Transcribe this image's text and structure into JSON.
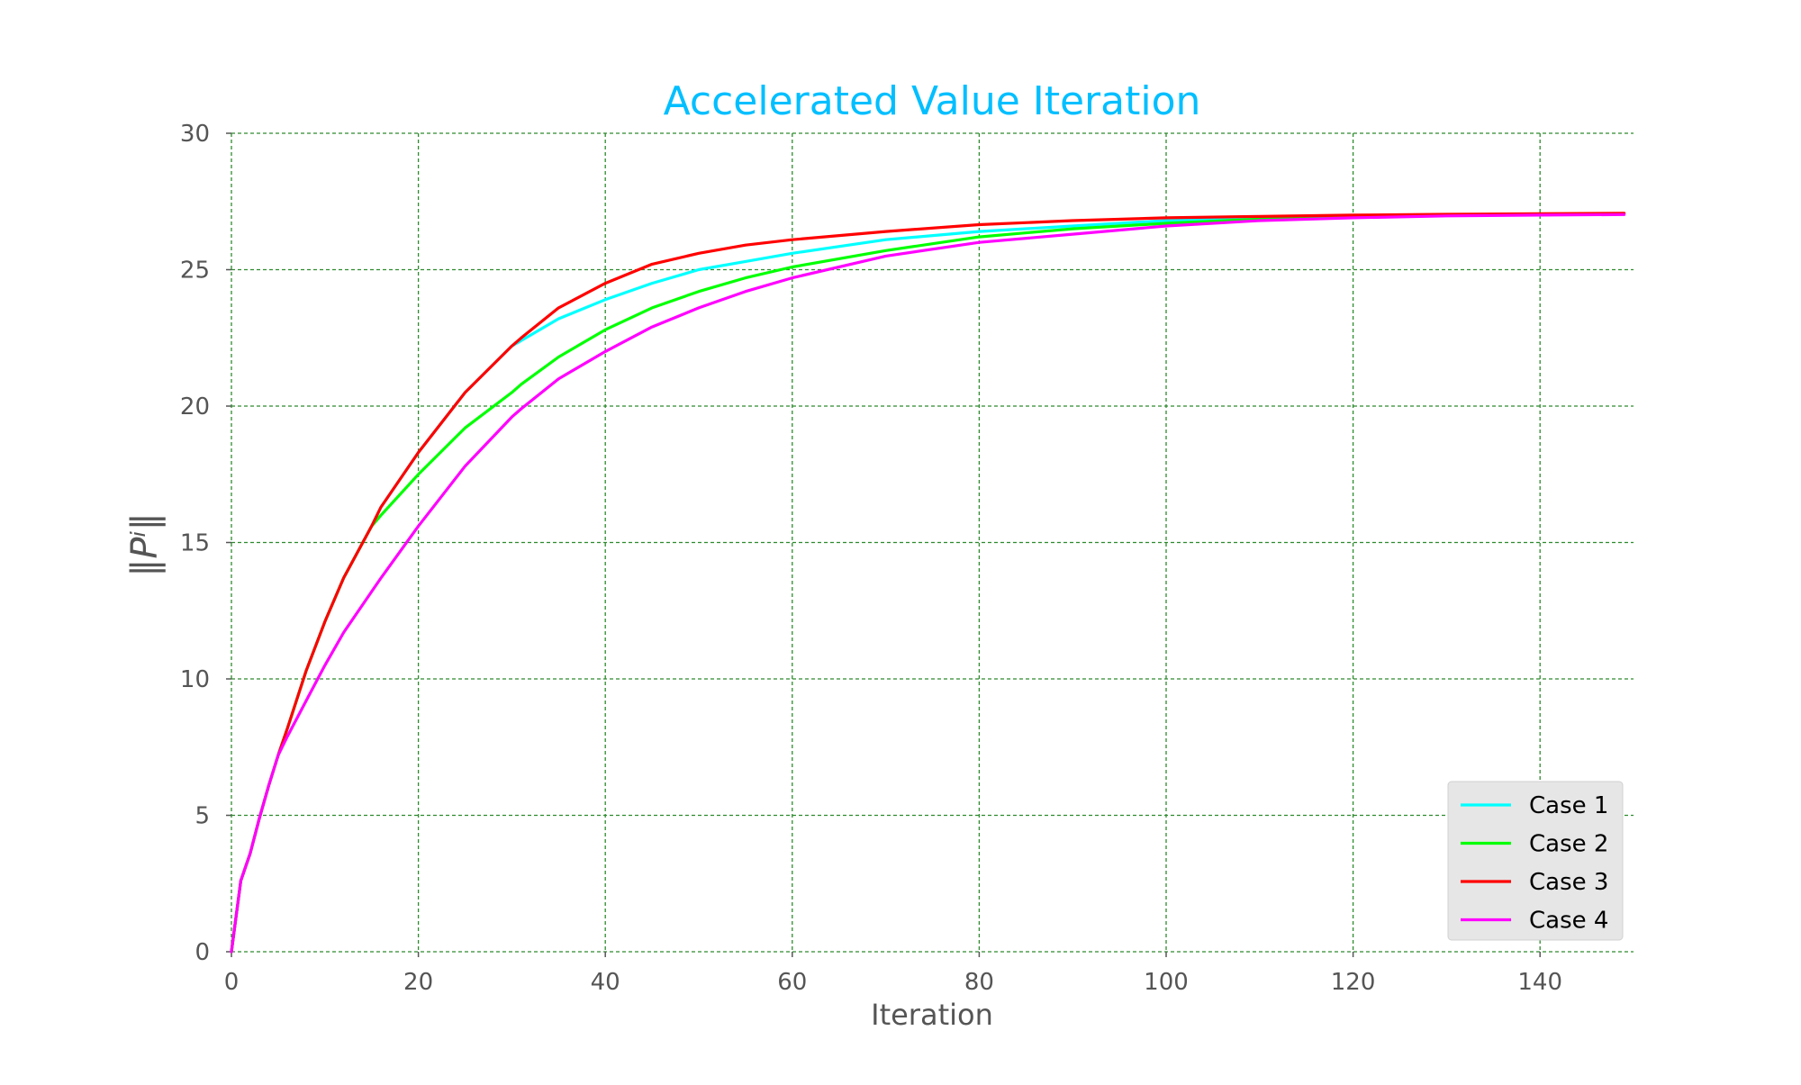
{
  "chart_data": {
    "type": "line",
    "title": "Accelerated Value Iteration",
    "title_color": "#00bfff",
    "xlabel": "Iteration",
    "ylabel": "‖Pⁱ‖",
    "xlim": [
      0,
      150
    ],
    "ylim": [
      0,
      30
    ],
    "x_ticks": [
      0,
      20,
      40,
      60,
      80,
      100,
      120,
      140
    ],
    "y_ticks": [
      0,
      5,
      10,
      15,
      20,
      25,
      30
    ],
    "grid": true,
    "grid_color": "#2e8b2e",
    "legend_position": "lower-right",
    "x": [
      0,
      1,
      2,
      3,
      4,
      5,
      6,
      8,
      10,
      12,
      15,
      16,
      20,
      25,
      30,
      31,
      35,
      40,
      45,
      50,
      55,
      60,
      70,
      80,
      90,
      100,
      110,
      120,
      130,
      140,
      149
    ],
    "series": [
      {
        "name": "Case 1",
        "color": "#00ffff",
        "values": [
          0,
          2.6,
          3.6,
          4.9,
          6.1,
          7.2,
          8.2,
          10.3,
          12.1,
          13.7,
          15.6,
          16.3,
          18.3,
          20.5,
          22.2,
          22.4,
          23.2,
          23.9,
          24.5,
          25.0,
          25.3,
          25.6,
          26.1,
          26.4,
          26.6,
          26.8,
          26.9,
          26.95,
          27.0,
          27.02,
          27.05
        ]
      },
      {
        "name": "Case 2",
        "color": "#00ff00",
        "values": [
          0,
          2.6,
          3.6,
          4.9,
          6.1,
          7.2,
          8.2,
          10.3,
          12.1,
          13.7,
          15.6,
          16.0,
          17.5,
          19.2,
          20.5,
          20.8,
          21.8,
          22.8,
          23.6,
          24.2,
          24.7,
          25.1,
          25.7,
          26.2,
          26.5,
          26.7,
          26.85,
          26.95,
          27.0,
          27.02,
          27.05
        ]
      },
      {
        "name": "Case 3",
        "color": "#ff0000",
        "values": [
          0,
          2.6,
          3.6,
          4.9,
          6.1,
          7.2,
          8.2,
          10.3,
          12.1,
          13.7,
          15.6,
          16.3,
          18.3,
          20.5,
          22.2,
          22.5,
          23.6,
          24.5,
          25.2,
          25.6,
          25.9,
          26.1,
          26.4,
          26.65,
          26.8,
          26.9,
          26.95,
          27.0,
          27.03,
          27.05,
          27.07
        ]
      },
      {
        "name": "Case 4",
        "color": "#ff00ff",
        "values": [
          0,
          2.6,
          3.6,
          4.9,
          6.1,
          7.2,
          7.9,
          9.2,
          10.5,
          11.7,
          13.2,
          13.7,
          15.6,
          17.8,
          19.6,
          19.9,
          21.0,
          22.0,
          22.9,
          23.6,
          24.2,
          24.7,
          25.5,
          26.0,
          26.3,
          26.6,
          26.8,
          26.9,
          26.97,
          27.0,
          27.02
        ]
      }
    ]
  }
}
